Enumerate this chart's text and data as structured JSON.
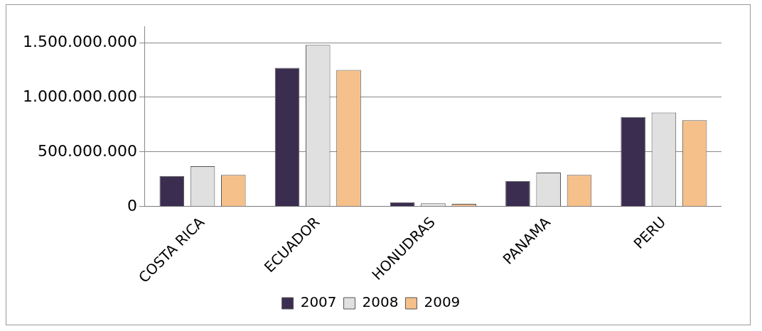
{
  "chart_data": {
    "type": "bar",
    "categories": [
      "COSTA RICA",
      "ECUADOR",
      "HONUDRAS",
      "PANAMA",
      "PERU"
    ],
    "series": [
      {
        "name": "2007",
        "color": "#3b2d4f",
        "values": [
          280000000,
          1270000000,
          40000000,
          235000000,
          820000000
        ]
      },
      {
        "name": "2008",
        "color": "#e0e0e0",
        "values": [
          370000000,
          1480000000,
          30000000,
          310000000,
          860000000
        ]
      },
      {
        "name": "2009",
        "color": "#f5c08a",
        "values": [
          290000000,
          1250000000,
          25000000,
          290000000,
          790000000
        ]
      }
    ],
    "ylim": [
      0,
      1650000000
    ],
    "yticks": [
      {
        "value": 0,
        "label": "0"
      },
      {
        "value": 500000000,
        "label": "500.000.000"
      },
      {
        "value": 1000000000,
        "label": "1.000.000.000"
      },
      {
        "value": 1500000000,
        "label": "1.500.000.000"
      }
    ],
    "grid": "y",
    "legend": "bottom"
  }
}
